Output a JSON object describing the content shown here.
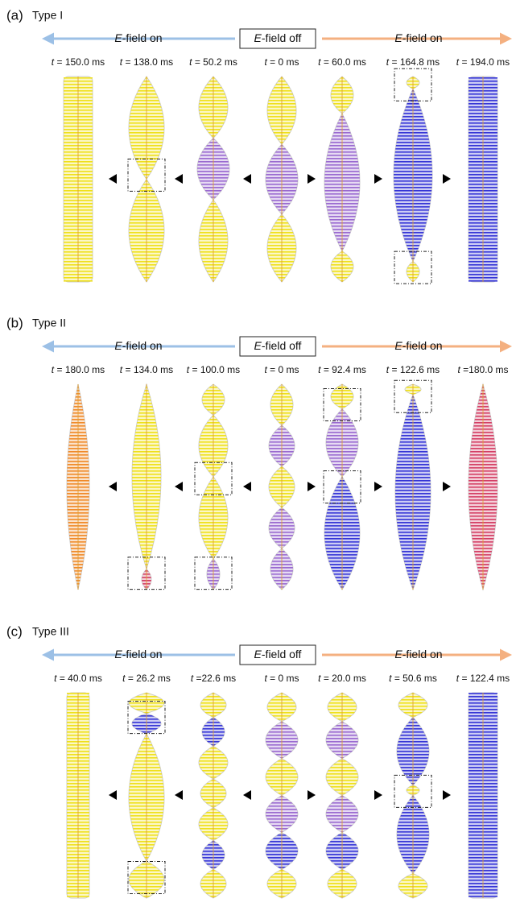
{
  "panels": [
    {
      "label": "(a)",
      "type": "Type I",
      "left": "E-field on",
      "center": "E-field off",
      "right": "E-field on",
      "times": [
        "t = 150.0 ms",
        "t = 138.0 ms",
        "t = 50.2 ms",
        "t = 0 ms",
        "t = 60.0 ms",
        "t = 164.8 ms",
        "t = 194.0 ms"
      ]
    },
    {
      "label": "(b)",
      "type": "Type II",
      "left": "E-field on",
      "center": "E-field off",
      "right": "E-field on",
      "times": [
        "t = 180.0 ms",
        "t = 134.0 ms",
        "t = 100.0 ms",
        "t = 0 ms",
        "t = 92.4 ms",
        "t = 122.6 ms",
        "t =180.0 ms"
      ]
    },
    {
      "label": "(c)",
      "type": "Type III",
      "left": "E-field on",
      "center": "E-field off",
      "right": "E-field on",
      "times": [
        "t = 40.0 ms",
        "t = 26.2 ms",
        "t =22.6 ms",
        "t = 0 ms",
        "t = 20.0 ms",
        "t = 50.6 ms",
        "t = 122.4 ms"
      ]
    }
  ]
}
